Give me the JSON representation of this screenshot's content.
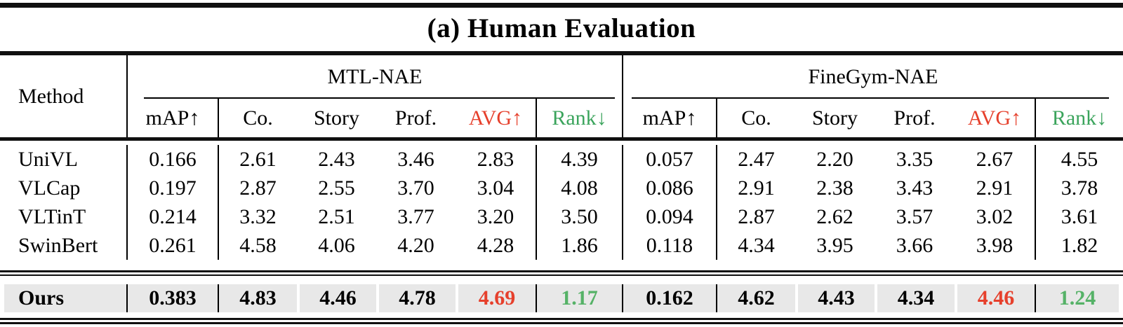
{
  "title": "(a) Human Evaluation",
  "colors": {
    "accent_red": "#e6402c",
    "accent_green": "#3ba45c",
    "value_green": "#55b267",
    "row_highlight": "#e8e8e8",
    "rule_color": "#101010"
  },
  "header": {
    "method_label": "Method",
    "groups": [
      {
        "label": "MTL-NAE"
      },
      {
        "label": "FineGym-NAE"
      }
    ],
    "sub": {
      "map": "mAP↑",
      "co": "Co.",
      "story": "Story",
      "prof": "Prof.",
      "avg": "AVG↑",
      "rank": "Rank↓"
    }
  },
  "rows": [
    {
      "method": "UniVL",
      "mtl": [
        "0.166",
        "2.61",
        "2.43",
        "3.46",
        "2.83",
        "4.39"
      ],
      "finegym": [
        "0.057",
        "2.47",
        "2.20",
        "3.35",
        "2.67",
        "4.55"
      ]
    },
    {
      "method": "VLCap",
      "mtl": [
        "0.197",
        "2.87",
        "2.55",
        "3.70",
        "3.04",
        "4.08"
      ],
      "finegym": [
        "0.086",
        "2.91",
        "2.38",
        "3.43",
        "2.91",
        "3.78"
      ]
    },
    {
      "method": "VLTinT",
      "mtl": [
        "0.214",
        "3.32",
        "2.51",
        "3.77",
        "3.20",
        "3.50"
      ],
      "finegym": [
        "0.094",
        "2.87",
        "2.62",
        "3.57",
        "3.02",
        "3.61"
      ]
    },
    {
      "method": "SwinBert",
      "mtl": [
        "0.261",
        "4.58",
        "4.06",
        "4.20",
        "4.28",
        "1.86"
      ],
      "finegym": [
        "0.118",
        "4.34",
        "3.95",
        "3.66",
        "3.98",
        "1.82"
      ]
    }
  ],
  "ours": {
    "method": "Ours",
    "mtl": [
      "0.383",
      "4.83",
      "4.46",
      "4.78",
      "4.69",
      "1.17"
    ],
    "finegym": [
      "0.162",
      "4.62",
      "4.43",
      "4.34",
      "4.46",
      "1.24"
    ]
  }
}
